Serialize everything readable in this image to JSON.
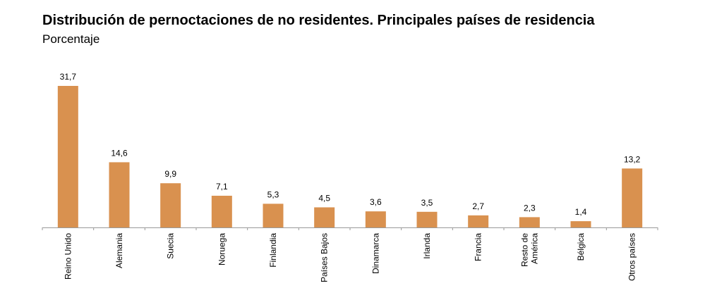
{
  "chart_data": {
    "type": "bar",
    "title": "Distribución de pernoctaciones de no residentes. Principales países de residencia",
    "subtitle": "Porcentaje",
    "categories": [
      "Reino Unido",
      "Alemania",
      "Suecia",
      "Noruega",
      "Finlandia",
      "Países Bajos",
      "Dinamarca",
      "Irlanda",
      "Francia",
      "Resto de América",
      "Bélgica",
      "Otros países"
    ],
    "category_lines": [
      [
        "Reino Unido"
      ],
      [
        "Alemania"
      ],
      [
        "Suecia"
      ],
      [
        "Noruega"
      ],
      [
        "Finlandia"
      ],
      [
        "Países Bajos"
      ],
      [
        "Dinamarca"
      ],
      [
        "Irlanda"
      ],
      [
        "Francia"
      ],
      [
        "Resto de",
        "América"
      ],
      [
        "Bélgica"
      ],
      [
        "Otros países"
      ]
    ],
    "values": [
      31.7,
      14.6,
      9.9,
      7.1,
      5.3,
      4.5,
      3.6,
      3.5,
      2.7,
      2.3,
      1.4,
      13.2
    ],
    "value_labels": [
      "31,7",
      "14,6",
      "9,9",
      "7,1",
      "5,3",
      "4,5",
      "3,6",
      "3,5",
      "2,7",
      "2,3",
      "1,4",
      "13,2"
    ],
    "xlabel": "",
    "ylabel": "",
    "ylim": [
      0,
      32
    ],
    "grid": false,
    "bar_color": "#D9914F",
    "axis_color": "#999999"
  }
}
